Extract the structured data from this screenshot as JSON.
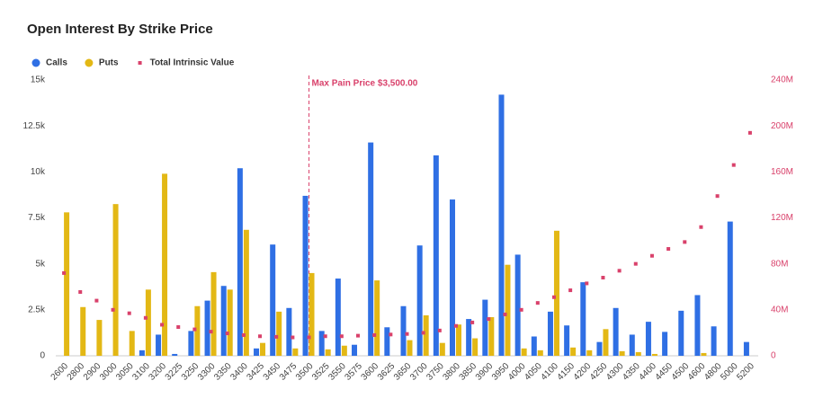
{
  "chart_data": {
    "type": "bar-line",
    "title": "Open Interest By Strike Price",
    "categories": [
      "2600",
      "2800",
      "2900",
      "3000",
      "3050",
      "3100",
      "3200",
      "3225",
      "3250",
      "3300",
      "3350",
      "3400",
      "3425",
      "3450",
      "3475",
      "3500",
      "3525",
      "3550",
      "3575",
      "3600",
      "3625",
      "3650",
      "3700",
      "3750",
      "3800",
      "3850",
      "3900",
      "3950",
      "4000",
      "4050",
      "4100",
      "4150",
      "4200",
      "4250",
      "4300",
      "4350",
      "4400",
      "4450",
      "4500",
      "4600",
      "4800",
      "5000",
      "5200"
    ],
    "series": [
      {
        "name": "Calls",
        "color": "#2f6fe4",
        "kind": "bar",
        "values": [
          0,
          0,
          0,
          0,
          0,
          300,
          1150,
          100,
          1350,
          3000,
          3800,
          10200,
          400,
          6050,
          2600,
          8700,
          1350,
          4200,
          600,
          11600,
          1550,
          2700,
          6000,
          10900,
          8500,
          2000,
          3050,
          14200,
          5500,
          1050,
          2400,
          1650,
          4000,
          750,
          2600,
          1150,
          1850,
          1300,
          2450,
          3300,
          1600,
          7300,
          750
        ]
      },
      {
        "name": "Puts",
        "color": "#e3b815",
        "kind": "bar",
        "values": [
          7800,
          2650,
          1950,
          8250,
          1350,
          3600,
          9900,
          0,
          2700,
          4550,
          3600,
          6850,
          700,
          2400,
          400,
          4500,
          350,
          550,
          0,
          4100,
          0,
          850,
          2200,
          700,
          1700,
          950,
          2100,
          4950,
          400,
          300,
          6800,
          450,
          300,
          1450,
          250,
          200,
          100,
          0,
          0,
          150,
          0,
          0,
          0
        ]
      },
      {
        "name": "Total Intrinsic Value",
        "color": "#d9416b",
        "kind": "dot",
        "axis": "y2",
        "values": [
          72,
          55.5,
          48,
          40,
          37,
          33,
          27,
          25,
          23,
          21,
          19.5,
          18,
          17,
          16.5,
          16,
          16,
          17,
          17,
          17.5,
          18,
          18.5,
          19,
          20,
          22,
          26,
          29,
          32,
          36,
          40,
          46,
          51,
          57,
          63,
          68,
          74,
          80,
          87,
          93,
          99,
          112,
          139,
          166,
          194
        ]
      }
    ],
    "ylim": [
      0,
      15000
    ],
    "yticks": [
      0,
      {
        "value": 2500,
        "label": "2.5k"
      },
      {
        "value": 5000,
        "label": "5k"
      },
      {
        "value": 7500,
        "label": "7.5k"
      },
      {
        "value": 10000,
        "label": "10k"
      },
      {
        "value": 12500,
        "label": "12.5k"
      },
      {
        "value": 15000,
        "label": "15k"
      }
    ],
    "y2lim": [
      0,
      240
    ],
    "y2ticks": [
      0,
      {
        "value": 40,
        "label": "40M"
      },
      {
        "value": 80,
        "label": "80M"
      },
      {
        "value": 120,
        "label": "120M"
      },
      {
        "value": 160,
        "label": "160M"
      },
      {
        "value": 200,
        "label": "200M"
      },
      {
        "value": 240,
        "label": "240M"
      }
    ],
    "annotation": {
      "text": "Max Pain Price $3,500.00",
      "x": "3500"
    }
  }
}
